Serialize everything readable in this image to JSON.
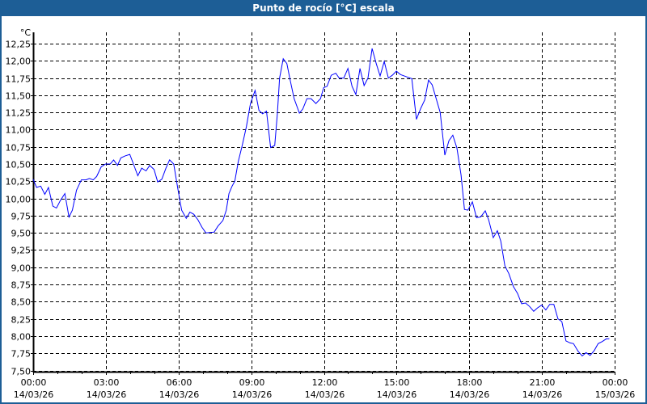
{
  "window": {
    "title": "Punto de rocío [°C] escala"
  },
  "chart_data": {
    "type": "line",
    "title": "Punto de rocío [°C] escala",
    "ylabel": "°C",
    "xlabel": "",
    "ylim": [
      7.5,
      12.25
    ],
    "xlim_hours": [
      0,
      24
    ],
    "grid": true,
    "line_color": "#0000ff",
    "y_ticks": [
      "7,50",
      "7,75",
      "8,00",
      "8,25",
      "8,50",
      "8,75",
      "9,00",
      "9,25",
      "9,50",
      "9,75",
      "10,00",
      "10,25",
      "10,50",
      "10,75",
      "11,00",
      "11,25",
      "11,50",
      "11,75",
      "12,00",
      "12,25"
    ],
    "x_ticks": [
      {
        "hour": 0,
        "time": "00:00",
        "date": "14/03/26"
      },
      {
        "hour": 3,
        "time": "03:00",
        "date": "14/03/26"
      },
      {
        "hour": 6,
        "time": "06:00",
        "date": "14/03/26"
      },
      {
        "hour": 9,
        "time": "09:00",
        "date": "14/03/26"
      },
      {
        "hour": 12,
        "time": "12:00",
        "date": "14/03/26"
      },
      {
        "hour": 15,
        "time": "15:00",
        "date": "14/03/26"
      },
      {
        "hour": 18,
        "time": "18:00",
        "date": "14/03/26"
      },
      {
        "hour": 21,
        "time": "21:00",
        "date": "14/03/26"
      },
      {
        "hour": 24,
        "time": "00:00",
        "date": "15/03/26"
      }
    ],
    "series": [
      {
        "name": "Punto de rocío",
        "x_hours": [
          0.0,
          0.14,
          0.31,
          0.48,
          0.63,
          0.81,
          0.96,
          1.12,
          1.31,
          1.48,
          1.62,
          1.79,
          1.99,
          2.18,
          2.32,
          2.48,
          2.62,
          2.81,
          2.99,
          3.18,
          3.32,
          3.48,
          3.62,
          3.81,
          3.99,
          4.14,
          4.32,
          4.48,
          4.66,
          4.81,
          4.99,
          5.14,
          5.31,
          5.48,
          5.63,
          5.8,
          5.97,
          6.13,
          6.32,
          6.47,
          6.63,
          6.8,
          6.97,
          7.13,
          7.47,
          7.63,
          7.83,
          7.97,
          8.08,
          8.21,
          8.32,
          8.47,
          8.63,
          8.8,
          8.97,
          9.16,
          9.32,
          9.47,
          9.63,
          9.8,
          9.97,
          10.08,
          10.17,
          10.32,
          10.47,
          10.6,
          10.77,
          10.99,
          11.13,
          11.3,
          11.47,
          11.67,
          11.86,
          11.99,
          12.13,
          12.3,
          12.49,
          12.63,
          12.82,
          12.99,
          13.16,
          13.32,
          13.49,
          13.66,
          13.82,
          13.99,
          14.16,
          14.32,
          14.49,
          14.66,
          14.82,
          14.99,
          15.16,
          15.47,
          15.63,
          15.82,
          16.0,
          16.16,
          16.32,
          16.47,
          16.8,
          16.99,
          17.16,
          17.32,
          17.49,
          17.66,
          17.8,
          17.94,
          18.13,
          18.3,
          18.47,
          18.66,
          18.8,
          18.99,
          19.16,
          19.3,
          19.47,
          19.63,
          19.82,
          19.99,
          20.16,
          20.32,
          20.49,
          20.66,
          20.82,
          20.99,
          21.16,
          21.32,
          21.49,
          21.66,
          21.82,
          21.99,
          22.16,
          22.3,
          22.49,
          22.66,
          22.82,
          22.99,
          23.16,
          23.32,
          23.49,
          23.66,
          23.78
        ],
        "values": [
          10.28,
          10.16,
          10.18,
          10.06,
          10.16,
          9.89,
          9.86,
          9.97,
          10.07,
          9.73,
          9.83,
          10.12,
          10.27,
          10.27,
          10.29,
          10.27,
          10.32,
          10.46,
          10.5,
          10.5,
          10.56,
          10.48,
          10.59,
          10.62,
          10.64,
          10.5,
          10.33,
          10.44,
          10.4,
          10.48,
          10.42,
          10.24,
          10.28,
          10.44,
          10.56,
          10.5,
          10.14,
          9.83,
          9.71,
          9.8,
          9.77,
          9.69,
          9.58,
          9.5,
          9.51,
          9.6,
          9.68,
          9.83,
          10.07,
          10.18,
          10.25,
          10.54,
          10.77,
          11.04,
          11.38,
          11.57,
          11.28,
          11.23,
          11.27,
          10.74,
          10.77,
          11.24,
          11.75,
          12.03,
          11.96,
          11.73,
          11.45,
          11.24,
          11.3,
          11.45,
          11.45,
          11.38,
          11.45,
          11.61,
          11.63,
          11.79,
          11.82,
          11.75,
          11.75,
          11.89,
          11.63,
          11.51,
          11.89,
          11.64,
          11.75,
          12.18,
          11.96,
          11.78,
          11.99,
          11.75,
          11.79,
          11.85,
          11.8,
          11.76,
          11.74,
          11.15,
          11.31,
          11.43,
          11.72,
          11.65,
          11.25,
          10.63,
          10.84,
          10.92,
          10.73,
          10.34,
          9.84,
          9.83,
          9.95,
          9.72,
          9.73,
          9.82,
          9.69,
          9.43,
          9.53,
          9.38,
          9.02,
          8.91,
          8.72,
          8.62,
          8.47,
          8.48,
          8.43,
          8.36,
          8.41,
          8.45,
          8.38,
          8.46,
          8.46,
          8.25,
          8.21,
          7.93,
          7.9,
          7.89,
          7.78,
          7.71,
          7.76,
          7.72,
          7.79,
          7.89,
          7.92,
          7.96,
          7.96
        ]
      }
    ]
  }
}
